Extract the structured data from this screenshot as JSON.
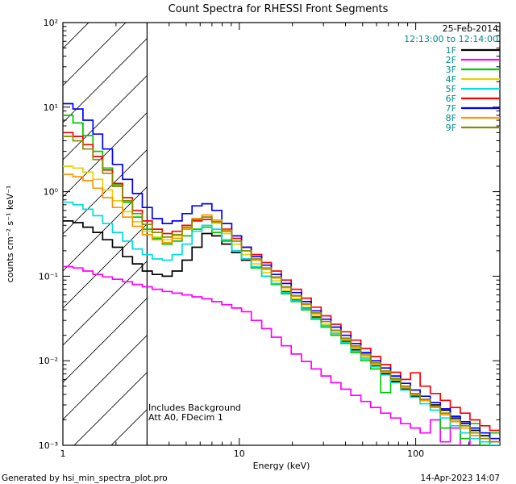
{
  "annotations": {
    "date": "25-Feb-2014",
    "time_range": "12:13:00 to 12:14:00",
    "note_line1": "Includes Background",
    "note_line2": "Att A0, FDecim 1"
  },
  "footer": {
    "left": "Generated by hsi_min_spectra_plot.pro",
    "right": "14-Apr-2023 14:07"
  },
  "colors": {
    "annotation_teal": "#008b8b",
    "axis": "#000000",
    "background": "#ffffff"
  },
  "chart_data": {
    "type": "line",
    "step_mode": true,
    "title": "Count Spectra for RHESSI Front Segments",
    "xlabel": "Energy (keV)",
    "ylabel": "counts cm⁻² s⁻¹ keV⁻¹",
    "x_scale": "log",
    "y_scale": "log",
    "xlim": [
      1,
      300
    ],
    "ylim": [
      0.001,
      100
    ],
    "grid": false,
    "legend_position": "top-right-inside",
    "hatched_region": {
      "x_start": 1,
      "x_end": 3
    },
    "x_ticks": [
      {
        "value": 1,
        "label": "1"
      },
      {
        "value": 10,
        "label": "10"
      },
      {
        "value": 100,
        "label": "100"
      }
    ],
    "y_ticks": [
      {
        "value": 0.001,
        "label": "10⁻³"
      },
      {
        "value": 0.01,
        "label": "10⁻²"
      },
      {
        "value": 0.1,
        "label": "10⁻¹"
      },
      {
        "value": 1,
        "label": "10⁰"
      },
      {
        "value": 10,
        "label": "10¹"
      },
      {
        "value": 100,
        "label": "10²"
      }
    ],
    "energies_keV": [
      1.0,
      1.14,
      1.3,
      1.48,
      1.68,
      1.91,
      2.18,
      2.48,
      2.82,
      3.21,
      3.66,
      4.16,
      4.74,
      5.4,
      6.14,
      6.99,
      7.96,
      9.06,
      10.3,
      11.7,
      13.4,
      15.2,
      17.3,
      19.7,
      22.5,
      25.6,
      29.1,
      33.1,
      37.7,
      42.9,
      48.9,
      55.6,
      63.3,
      72.1,
      82.1,
      93.4,
      106,
      121,
      138,
      157,
      179,
      203,
      231,
      263,
      300
    ],
    "series": [
      {
        "name": "1F",
        "color": "#000000",
        "values": [
          0.45,
          0.43,
          0.38,
          0.33,
          0.27,
          0.22,
          0.17,
          0.14,
          0.115,
          0.105,
          0.1,
          0.115,
          0.155,
          0.22,
          0.32,
          0.3,
          0.24,
          0.19,
          0.155,
          0.125,
          0.1,
          0.082,
          0.065,
          0.052,
          0.042,
          0.033,
          0.026,
          0.021,
          0.017,
          0.0135,
          0.011,
          0.0088,
          0.007,
          0.0057,
          0.0046,
          0.0038,
          0.0034,
          0.003,
          0.0026,
          0.0021,
          0.0018,
          0.0015,
          0.0013,
          0.0011,
          0.001
        ]
      },
      {
        "name": "2F",
        "color": "#ff00ff",
        "values": [
          0.13,
          0.125,
          0.115,
          0.105,
          0.098,
          0.092,
          0.086,
          0.08,
          0.075,
          0.07,
          0.066,
          0.063,
          0.06,
          0.057,
          0.054,
          0.05,
          0.046,
          0.042,
          0.038,
          0.03,
          0.024,
          0.019,
          0.015,
          0.012,
          0.0098,
          0.008,
          0.0066,
          0.0055,
          0.0046,
          0.0039,
          0.0033,
          0.0028,
          0.0024,
          0.0021,
          0.0018,
          0.0016,
          0.0014,
          0.002,
          0.0011,
          0.0016,
          0.0009,
          0.0013,
          0.0008,
          0.0012,
          0.0007
        ]
      },
      {
        "name": "3F",
        "color": "#00c800",
        "values": [
          8.0,
          6.5,
          4.6,
          3.0,
          1.9,
          1.2,
          0.75,
          0.5,
          0.36,
          0.28,
          0.24,
          0.26,
          0.3,
          0.36,
          0.38,
          0.33,
          0.26,
          0.2,
          0.16,
          0.125,
          0.1,
          0.08,
          0.062,
          0.05,
          0.04,
          0.031,
          0.025,
          0.02,
          0.016,
          0.0125,
          0.01,
          0.008,
          0.0042,
          0.0062,
          0.005,
          0.004,
          0.0034,
          0.0028,
          0.0016,
          0.0022,
          0.0012,
          0.0018,
          0.001,
          0.0014,
          0.0008
        ]
      },
      {
        "name": "4F",
        "color": "#e8d200",
        "values": [
          2.0,
          1.9,
          1.7,
          1.4,
          1.05,
          0.78,
          0.58,
          0.44,
          0.34,
          0.29,
          0.27,
          0.3,
          0.37,
          0.46,
          0.5,
          0.42,
          0.32,
          0.24,
          0.18,
          0.14,
          0.11,
          0.088,
          0.068,
          0.054,
          0.043,
          0.034,
          0.027,
          0.022,
          0.0175,
          0.014,
          0.011,
          0.009,
          0.0073,
          0.0059,
          0.0048,
          0.004,
          0.0034,
          0.0029,
          0.0024,
          0.002,
          0.0017,
          0.0014,
          0.0012,
          0.0011,
          0.0009
        ]
      },
      {
        "name": "5F",
        "color": "#00dede",
        "values": [
          0.75,
          0.7,
          0.62,
          0.52,
          0.42,
          0.33,
          0.26,
          0.21,
          0.18,
          0.16,
          0.155,
          0.18,
          0.24,
          0.34,
          0.4,
          0.36,
          0.27,
          0.2,
          0.16,
          0.13,
          0.1,
          0.082,
          0.064,
          0.051,
          0.041,
          0.032,
          0.026,
          0.021,
          0.0165,
          0.013,
          0.0105,
          0.0085,
          0.0068,
          0.0055,
          0.0045,
          0.0037,
          0.0031,
          0.0026,
          0.0021,
          0.0017,
          0.0014,
          0.0012,
          0.0011,
          0.001,
          0.0009
        ]
      },
      {
        "name": "6F",
        "color": "#ff0000",
        "values": [
          5.0,
          4.5,
          3.6,
          2.6,
          1.8,
          1.25,
          0.85,
          0.6,
          0.45,
          0.36,
          0.32,
          0.34,
          0.4,
          0.45,
          0.47,
          0.44,
          0.36,
          0.28,
          0.22,
          0.18,
          0.145,
          0.115,
          0.09,
          0.07,
          0.055,
          0.043,
          0.034,
          0.027,
          0.022,
          0.0175,
          0.014,
          0.0112,
          0.009,
          0.0073,
          0.006,
          0.0072,
          0.005,
          0.0041,
          0.0034,
          0.0028,
          0.0024,
          0.002,
          0.0017,
          0.0015,
          0.0013
        ]
      },
      {
        "name": "7F",
        "color": "#0000ff",
        "values": [
          11,
          9.5,
          7.0,
          4.8,
          3.2,
          2.1,
          1.4,
          0.95,
          0.65,
          0.48,
          0.42,
          0.45,
          0.55,
          0.68,
          0.72,
          0.6,
          0.42,
          0.3,
          0.22,
          0.17,
          0.135,
          0.105,
          0.082,
          0.064,
          0.05,
          0.039,
          0.031,
          0.025,
          0.02,
          0.016,
          0.0125,
          0.01,
          0.0082,
          0.0066,
          0.0054,
          0.0045,
          0.0038,
          0.0032,
          0.0027,
          0.0022,
          0.0019,
          0.0016,
          0.0014,
          0.0012,
          0.0011
        ]
      },
      {
        "name": "8F",
        "color": "#ff9500",
        "values": [
          1.6,
          1.5,
          1.35,
          1.1,
          0.85,
          0.65,
          0.5,
          0.39,
          0.31,
          0.27,
          0.25,
          0.28,
          0.36,
          0.48,
          0.53,
          0.46,
          0.35,
          0.26,
          0.2,
          0.155,
          0.12,
          0.095,
          0.073,
          0.058,
          0.046,
          0.036,
          0.029,
          0.023,
          0.018,
          0.0145,
          0.0115,
          0.0092,
          0.0074,
          0.006,
          0.0048,
          0.004,
          0.0034,
          0.0028,
          0.0023,
          0.0019,
          0.0016,
          0.0013,
          0.0012,
          0.0011,
          0.001
        ]
      },
      {
        "name": "9F",
        "color": "#8b8b00",
        "values": [
          4.5,
          4.0,
          3.2,
          2.4,
          1.65,
          1.15,
          0.78,
          0.55,
          0.41,
          0.33,
          0.29,
          0.31,
          0.38,
          0.47,
          0.5,
          0.44,
          0.34,
          0.26,
          0.2,
          0.16,
          0.125,
          0.098,
          0.075,
          0.059,
          0.047,
          0.037,
          0.029,
          0.023,
          0.0185,
          0.015,
          0.012,
          0.0095,
          0.0076,
          0.0061,
          0.005,
          0.0041,
          0.0035,
          0.0029,
          0.0024,
          0.002,
          0.0017,
          0.0014,
          0.0012,
          0.0011,
          0.001
        ]
      }
    ]
  }
}
